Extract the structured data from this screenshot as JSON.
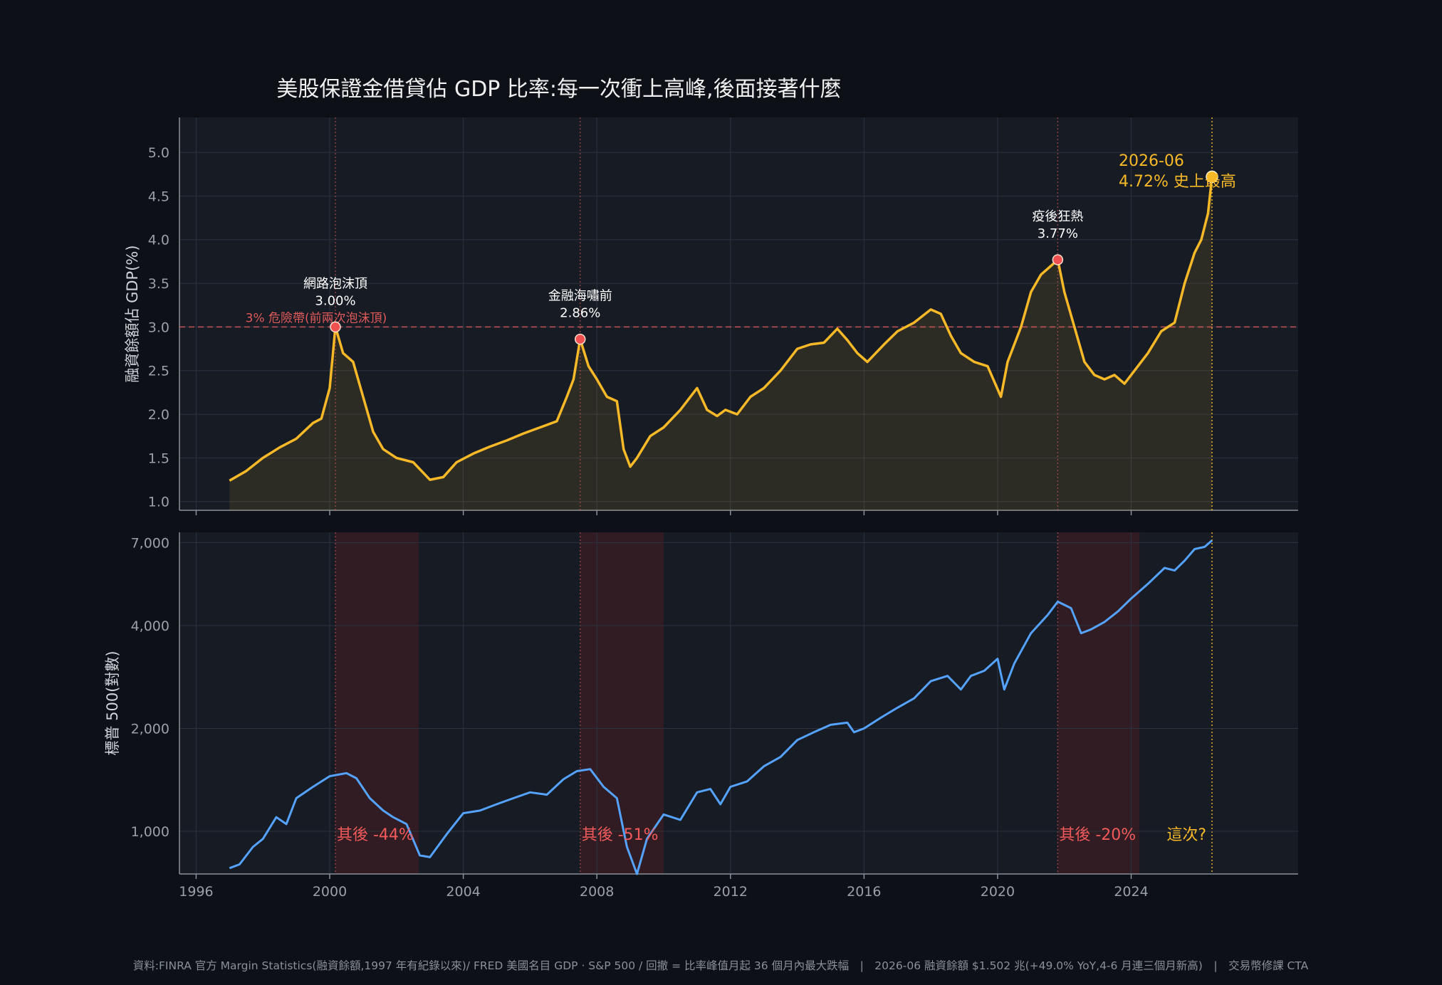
{
  "title": "美股保證金借貸佔 GDP 比率:每一次衝上高峰,後面接著什麼",
  "footer": "資料:FINRA 官方 Margin Statistics(融資餘額,1997 年有紀錄以來)/ FRED 美國名目 GDP · S&P 500 / 回撤 = 比率峰值月起 36 個月內最大跌幅　|　2026-06 融資餘額 $1.502 兆(+49.0% YoY,4-6 月連三個月新高)　|　交易幣修課 CTA",
  "colors": {
    "background": "#0d1117",
    "plot_bg": "#161b24",
    "margin_line": "#f7b928",
    "spx_line": "#55a3ff",
    "danger": "#e05a5a",
    "peak_marker": "#f05050",
    "drawdown_shade": "#3a1e22",
    "text": "#e6e6e6",
    "tick": "#9aa0a8"
  },
  "chart_data": [
    {
      "type": "area",
      "ylabel": "融資餘額佔 GDP(%)",
      "ylim": [
        0.9,
        5.4
      ],
      "xlim": [
        1995.5,
        2029.0
      ],
      "yticks": [
        "1.0",
        "1.5",
        "2.0",
        "2.5",
        "3.0",
        "3.5",
        "4.0",
        "4.5",
        "5.0"
      ],
      "grid": true,
      "series": [
        {
          "x": [
            1997.0,
            1997.5,
            1998.0,
            1998.5,
            1999.0,
            1999.5,
            1999.75,
            2000.0,
            2000.17,
            2000.4,
            2000.7,
            2001.0,
            2001.3,
            2001.6,
            2002.0,
            2002.5,
            2003.0,
            2003.4,
            2003.8,
            2004.3,
            2004.8,
            2005.3,
            2005.8,
            2006.3,
            2006.8,
            2007.1,
            2007.3,
            2007.5,
            2007.75,
            2008.0,
            2008.3,
            2008.6,
            2008.8,
            2009.0,
            2009.2,
            2009.6,
            2010.0,
            2010.5,
            2011.0,
            2011.3,
            2011.6,
            2011.85,
            2012.2,
            2012.6,
            2013.0,
            2013.5,
            2014.0,
            2014.4,
            2014.8,
            2015.2,
            2015.5,
            2015.8,
            2016.1,
            2016.6,
            2017.0,
            2017.5,
            2018.0,
            2018.3,
            2018.6,
            2018.9,
            2019.3,
            2019.7,
            2020.1,
            2020.3,
            2020.7,
            2021.0,
            2021.3,
            2021.6,
            2021.8,
            2022.0,
            2022.3,
            2022.6,
            2022.9,
            2023.2,
            2023.5,
            2023.8,
            2024.1,
            2024.5,
            2024.9,
            2025.3,
            2025.6,
            2025.9,
            2026.1,
            2026.3,
            2026.42
          ],
          "values": [
            1.24,
            1.35,
            1.5,
            1.62,
            1.72,
            1.9,
            1.95,
            2.3,
            3.0,
            2.7,
            2.6,
            2.2,
            1.8,
            1.6,
            1.5,
            1.45,
            1.25,
            1.28,
            1.45,
            1.55,
            1.63,
            1.7,
            1.78,
            1.85,
            1.92,
            2.2,
            2.4,
            2.86,
            2.55,
            2.4,
            2.2,
            2.15,
            1.6,
            1.4,
            1.5,
            1.75,
            1.85,
            2.05,
            2.3,
            2.05,
            1.98,
            2.05,
            2.0,
            2.2,
            2.3,
            2.5,
            2.75,
            2.8,
            2.82,
            2.98,
            2.85,
            2.7,
            2.6,
            2.8,
            2.95,
            3.05,
            3.2,
            3.15,
            2.9,
            2.7,
            2.6,
            2.55,
            2.2,
            2.6,
            3.0,
            3.4,
            3.6,
            3.7,
            3.77,
            3.4,
            3.0,
            2.6,
            2.45,
            2.4,
            2.45,
            2.35,
            2.5,
            2.7,
            2.95,
            3.05,
            3.5,
            3.85,
            4.0,
            4.3,
            4.72
          ]
        }
      ],
      "threshold": {
        "value": 3.0,
        "label": "3% 危險帶(前兩次泡沫頂)"
      },
      "annotations": [
        {
          "x": 2000.17,
          "y": 3.0,
          "name": "網路泡沫頂",
          "value_label": "3.00%"
        },
        {
          "x": 2007.5,
          "y": 2.86,
          "name": "金融海嘯前",
          "value_label": "2.86%"
        },
        {
          "x": 2021.8,
          "y": 3.77,
          "name": "疫後狂熱",
          "value_label": "3.77%"
        }
      ],
      "latest": {
        "x": 2026.42,
        "y": 4.72,
        "date_label": "2026-06",
        "value_label": "4.72%  史上最高"
      }
    },
    {
      "type": "line",
      "ylabel": "標普 500(對數)",
      "yscale": "log",
      "ylim": [
        750,
        7500
      ],
      "xlim": [
        1995.5,
        2029.0
      ],
      "xticks": [
        "1996",
        "2000",
        "2004",
        "2008",
        "2012",
        "2016",
        "2020",
        "2024"
      ],
      "yticks": [
        "1,000",
        "2,000",
        "4,000",
        "7,000"
      ],
      "grid": true,
      "series": [
        {
          "x": [
            1997.0,
            1997.3,
            1997.7,
            1998.0,
            1998.4,
            1998.7,
            1999.0,
            1999.5,
            2000.0,
            2000.5,
            2000.8,
            2001.2,
            2001.6,
            2001.9,
            2002.3,
            2002.7,
            2003.0,
            2003.5,
            2004.0,
            2004.5,
            2005.0,
            2005.5,
            2006.0,
            2006.5,
            2007.0,
            2007.4,
            2007.8,
            2008.2,
            2008.6,
            2008.9,
            2009.2,
            2009.5,
            2010.0,
            2010.5,
            2011.0,
            2011.4,
            2011.7,
            2012.0,
            2012.5,
            2013.0,
            2013.5,
            2014.0,
            2014.5,
            2015.0,
            2015.5,
            2015.7,
            2016.0,
            2016.5,
            2017.0,
            2017.5,
            2018.0,
            2018.5,
            2018.9,
            2019.2,
            2019.6,
            2020.0,
            2020.2,
            2020.5,
            2021.0,
            2021.5,
            2021.8,
            2022.2,
            2022.5,
            2022.8,
            2023.2,
            2023.6,
            2024.0,
            2024.5,
            2025.0,
            2025.3,
            2025.6,
            2025.9,
            2026.2,
            2026.42
          ],
          "values": [
            780,
            800,
            900,
            950,
            1100,
            1050,
            1250,
            1350,
            1450,
            1480,
            1430,
            1250,
            1150,
            1100,
            1050,
            850,
            840,
            980,
            1130,
            1150,
            1200,
            1250,
            1300,
            1280,
            1420,
            1500,
            1520,
            1350,
            1250,
            900,
            750,
            950,
            1120,
            1080,
            1300,
            1330,
            1200,
            1350,
            1400,
            1550,
            1650,
            1850,
            1950,
            2050,
            2080,
            1950,
            2000,
            2150,
            2300,
            2450,
            2750,
            2850,
            2600,
            2850,
            2950,
            3200,
            2600,
            3100,
            3800,
            4300,
            4700,
            4500,
            3800,
            3900,
            4100,
            4400,
            4800,
            5300,
            5900,
            5800,
            6200,
            6700,
            6800,
            7100
          ]
        }
      ],
      "drawdowns": [
        {
          "start": 2000.17,
          "end": 2002.67,
          "label": "其後 -44%"
        },
        {
          "start": 2007.5,
          "end": 2010.0,
          "label": "其後 -51%"
        },
        {
          "start": 2021.8,
          "end": 2024.25,
          "label": "其後 -20%"
        }
      ],
      "latest_label": "這次?"
    }
  ]
}
